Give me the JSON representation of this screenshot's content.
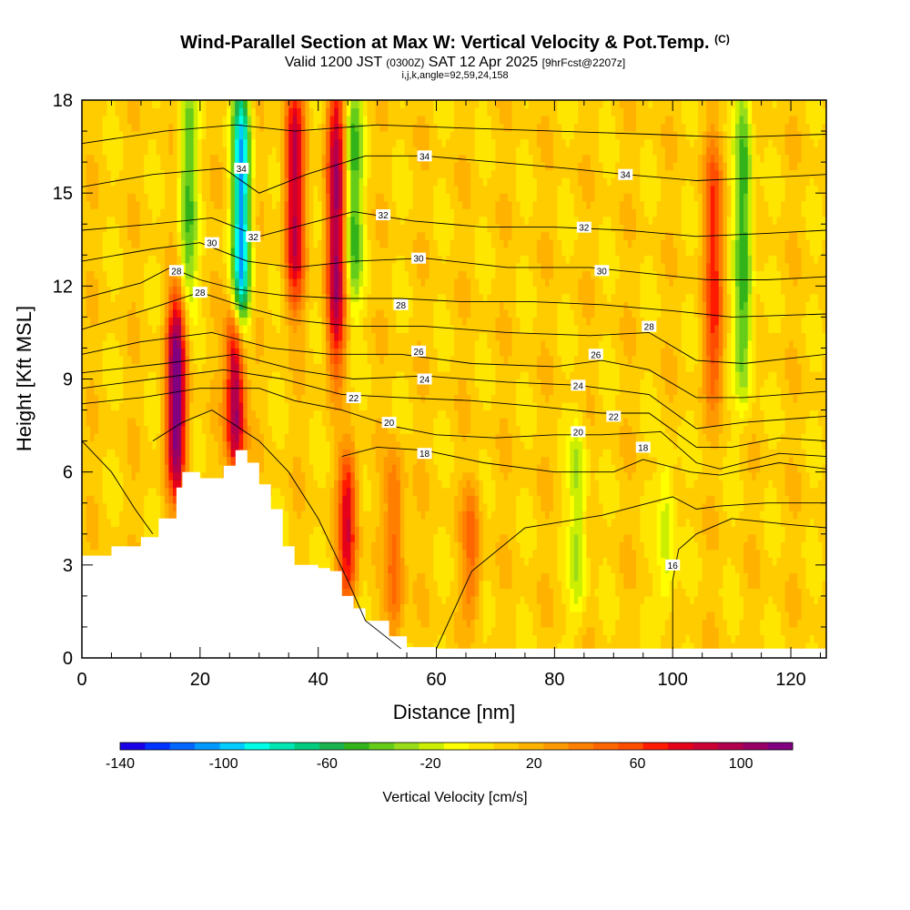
{
  "titles": {
    "main": "Wind-Parallel Section at Max W: Vertical Velocity & Pot.Temp.",
    "copyright": "(C)",
    "valid_prefix": "Valid 1200 JST",
    "valid_utc": "(0300Z)",
    "valid_date": "SAT 12 Apr 2025",
    "forecast": "[9hrFcst@2207z]",
    "indices": "i,j,k,angle=92,59,24,158"
  },
  "chart_data": {
    "type": "heatmap",
    "title": "Wind-Parallel Section at Max W: Vertical Velocity & Pot.Temp.",
    "xlabel": "Distance [nm]",
    "ylabel": "Height [Kft MSL]",
    "xlim": [
      0,
      126
    ],
    "ylim": [
      0,
      18
    ],
    "xticks": [
      0,
      20,
      40,
      60,
      80,
      100,
      120
    ],
    "yticks": [
      0,
      3,
      6,
      9,
      12,
      15,
      18
    ],
    "colorbar": {
      "label": "Vertical Velocity [cm/s]",
      "range": [
        -140,
        120
      ],
      "ticks": [
        -140,
        -100,
        -60,
        -20,
        20,
        60,
        100
      ],
      "colors": [
        "#1a00e6",
        "#0033ff",
        "#0066ff",
        "#0099ff",
        "#00ccff",
        "#00ffe6",
        "#00e6b3",
        "#00cc80",
        "#1ab34d",
        "#33b31a",
        "#66cc1a",
        "#99dd1a",
        "#ccee00",
        "#ffff00",
        "#ffe600",
        "#ffcc00",
        "#ffb300",
        "#ff9900",
        "#ff8000",
        "#ff6600",
        "#ff4d00",
        "#ff1a00",
        "#e6001a",
        "#cc0033",
        "#b3004d",
        "#990066",
        "#800080"
      ]
    },
    "terrain_kft": [
      [
        0,
        3.3
      ],
      [
        5,
        3.6
      ],
      [
        10,
        3.9
      ],
      [
        13,
        4.5
      ],
      [
        16,
        5.5
      ],
      [
        17,
        6.0
      ],
      [
        20,
        5.8
      ],
      [
        24,
        6.2
      ],
      [
        26,
        6.7
      ],
      [
        28,
        6.3
      ],
      [
        30,
        5.6
      ],
      [
        32,
        4.8
      ],
      [
        34,
        3.6
      ],
      [
        36,
        3.0
      ],
      [
        40,
        2.9
      ],
      [
        42,
        2.8
      ],
      [
        44,
        2.0
      ],
      [
        46,
        1.6
      ],
      [
        48,
        1.2
      ],
      [
        52,
        0.7
      ],
      [
        55,
        0.35
      ],
      [
        60,
        0.3
      ],
      [
        126,
        0.3
      ]
    ],
    "updrafts": [
      {
        "x": 16,
        "y_min": 6.0,
        "y_max": 11.0,
        "peak_cm_s": 110
      },
      {
        "x": 26,
        "y_min": 6.7,
        "y_max": 10.5,
        "peak_cm_s": 100
      },
      {
        "x": 36,
        "y_min": 12.0,
        "y_max": 18.0,
        "peak_cm_s": 80
      },
      {
        "x": 43,
        "y_min": 10.0,
        "y_max": 18.0,
        "peak_cm_s": 90
      },
      {
        "x": 45,
        "y_min": 2.5,
        "y_max": 6.0,
        "peak_cm_s": 70
      },
      {
        "x": 53,
        "y_min": 1.0,
        "y_max": 6.0,
        "peak_cm_s": 40
      },
      {
        "x": 66,
        "y_min": 2.0,
        "y_max": 5.0,
        "peak_cm_s": 35
      },
      {
        "x": 107,
        "y_min": 9.0,
        "y_max": 16.0,
        "peak_cm_s": 55
      }
    ],
    "downdrafts": [
      {
        "x": 27,
        "y_min": 11.0,
        "y_max": 18.0,
        "peak_cm_s": -110
      },
      {
        "x": 18,
        "y_min": 12.0,
        "y_max": 18.0,
        "peak_cm_s": -50
      },
      {
        "x": 46,
        "y_min": 12.0,
        "y_max": 18.0,
        "peak_cm_s": -55
      },
      {
        "x": 112,
        "y_min": 9.0,
        "y_max": 18.0,
        "peak_cm_s": -60
      },
      {
        "x": 84,
        "y_min": 2.0,
        "y_max": 7.0,
        "peak_cm_s": -35
      },
      {
        "x": 99,
        "y_min": 2.0,
        "y_max": 6.0,
        "peak_cm_s": -30
      }
    ],
    "isentropes": [
      {
        "label": "16",
        "points": [
          [
            0,
            7.0
          ],
          [
            5,
            6.0
          ],
          [
            9,
            4.8
          ],
          [
            12,
            4.0
          ]
        ],
        "labels_at": []
      },
      {
        "label": "16",
        "points": [
          [
            60,
            0.3
          ],
          [
            66,
            2.8
          ],
          [
            75,
            4.2
          ],
          [
            88,
            4.6
          ],
          [
            96,
            5.0
          ],
          [
            100,
            5.2
          ],
          [
            104,
            4.8
          ],
          [
            108,
            4.9
          ],
          [
            116,
            5.0
          ],
          [
            126,
            5.0
          ]
        ],
        "labels_at": []
      },
      {
        "label": "16",
        "points": [
          [
            100,
            0.3
          ],
          [
            100,
            2.5
          ],
          [
            101,
            3.5
          ],
          [
            104,
            4.0
          ],
          [
            110,
            4.5
          ],
          [
            120,
            4.3
          ],
          [
            126,
            4.2
          ]
        ],
        "labels_at": [
          [
            100,
            3.0
          ]
        ]
      },
      {
        "label": "18",
        "points": [
          [
            12,
            7.0
          ],
          [
            17,
            7.6
          ],
          [
            22,
            8.0
          ],
          [
            30,
            7.0
          ],
          [
            35,
            6.0
          ],
          [
            40,
            4.5
          ],
          [
            45,
            2.5
          ],
          [
            48,
            1.2
          ],
          [
            54,
            0.3
          ]
        ],
        "labels_at": []
      },
      {
        "label": "18",
        "points": [
          [
            44,
            6.5
          ],
          [
            50,
            6.8
          ],
          [
            58,
            6.7
          ],
          [
            68,
            6.3
          ],
          [
            80,
            6.0
          ],
          [
            90,
            6.0
          ],
          [
            95,
            6.4
          ],
          [
            103,
            6.0
          ],
          [
            108,
            5.9
          ],
          [
            118,
            6.3
          ],
          [
            126,
            6.1
          ]
        ],
        "labels_at": [
          [
            58,
            6.6
          ],
          [
            95,
            6.8
          ]
        ]
      },
      {
        "label": "20",
        "points": [
          [
            0,
            8.2
          ],
          [
            10,
            8.4
          ],
          [
            20,
            8.7
          ],
          [
            30,
            8.7
          ],
          [
            36,
            8.3
          ],
          [
            44,
            8.0
          ],
          [
            52,
            7.5
          ],
          [
            60,
            7.2
          ],
          [
            70,
            7.1
          ],
          [
            80,
            7.2
          ],
          [
            88,
            7.2
          ],
          [
            98,
            7.3
          ],
          [
            104,
            6.3
          ],
          [
            108,
            6.1
          ],
          [
            118,
            6.6
          ],
          [
            126,
            6.5
          ]
        ],
        "labels_at": [
          [
            52,
            7.6
          ],
          [
            84,
            7.3
          ]
        ]
      },
      {
        "label": "22",
        "points": [
          [
            0,
            8.7
          ],
          [
            12,
            9.0
          ],
          [
            24,
            9.3
          ],
          [
            34,
            9.0
          ],
          [
            44,
            8.5
          ],
          [
            54,
            8.4
          ],
          [
            66,
            8.3
          ],
          [
            78,
            8.1
          ],
          [
            88,
            7.9
          ],
          [
            96,
            7.9
          ],
          [
            104,
            6.8
          ],
          [
            110,
            6.8
          ],
          [
            118,
            7.1
          ],
          [
            126,
            7.0
          ]
        ],
        "labels_at": [
          [
            46,
            8.4
          ],
          [
            90,
            7.8
          ]
        ]
      },
      {
        "label": "24",
        "points": [
          [
            0,
            9.2
          ],
          [
            14,
            9.5
          ],
          [
            26,
            9.8
          ],
          [
            36,
            9.3
          ],
          [
            46,
            9.0
          ],
          [
            58,
            9.1
          ],
          [
            72,
            8.9
          ],
          [
            84,
            8.8
          ],
          [
            96,
            8.5
          ],
          [
            104,
            7.4
          ],
          [
            112,
            7.6
          ],
          [
            126,
            7.8
          ]
        ],
        "labels_at": [
          [
            58,
            9.0
          ],
          [
            84,
            8.8
          ]
        ]
      },
      {
        "label": "26",
        "points": [
          [
            0,
            9.8
          ],
          [
            10,
            10.2
          ],
          [
            22,
            10.5
          ],
          [
            32,
            10.0
          ],
          [
            42,
            9.8
          ],
          [
            54,
            9.8
          ],
          [
            66,
            9.5
          ],
          [
            80,
            9.4
          ],
          [
            88,
            9.6
          ],
          [
            96,
            9.3
          ],
          [
            104,
            8.4
          ],
          [
            112,
            8.4
          ],
          [
            126,
            8.6
          ]
        ],
        "labels_at": [
          [
            57,
            9.9
          ],
          [
            87,
            9.8
          ]
        ]
      },
      {
        "label": "28",
        "points": [
          [
            0,
            10.6
          ],
          [
            12,
            11.3
          ],
          [
            20,
            11.8
          ],
          [
            28,
            11.3
          ],
          [
            36,
            10.9
          ],
          [
            46,
            10.7
          ],
          [
            58,
            10.7
          ],
          [
            72,
            10.5
          ],
          [
            86,
            10.4
          ],
          [
            96,
            10.5
          ],
          [
            104,
            9.6
          ],
          [
            112,
            9.5
          ],
          [
            126,
            9.8
          ]
        ],
        "labels_at": [
          [
            20,
            11.8
          ],
          [
            54,
            11.4
          ],
          [
            96,
            10.7
          ]
        ]
      },
      {
        "label": "28",
        "points": [
          [
            0,
            11.6
          ],
          [
            10,
            12.1
          ],
          [
            15,
            12.6
          ],
          [
            20,
            12.2
          ],
          [
            26,
            11.9
          ],
          [
            34,
            11.7
          ],
          [
            44,
            11.6
          ],
          [
            54,
            11.6
          ],
          [
            64,
            11.5
          ],
          [
            76,
            11.5
          ],
          [
            88,
            11.4
          ],
          [
            100,
            11.2
          ],
          [
            110,
            11.0
          ],
          [
            126,
            11.1
          ]
        ],
        "labels_at": [
          [
            16,
            12.5
          ]
        ]
      },
      {
        "label": "30",
        "points": [
          [
            0,
            12.8
          ],
          [
            12,
            13.2
          ],
          [
            20,
            13.4
          ],
          [
            28,
            12.8
          ],
          [
            36,
            12.6
          ],
          [
            46,
            12.8
          ],
          [
            58,
            12.9
          ],
          [
            72,
            12.6
          ],
          [
            86,
            12.6
          ],
          [
            96,
            12.4
          ],
          [
            106,
            12.2
          ],
          [
            116,
            12.2
          ],
          [
            126,
            12.3
          ]
        ],
        "labels_at": [
          [
            22,
            13.4
          ],
          [
            57,
            12.9
          ],
          [
            88,
            12.5
          ]
        ]
      },
      {
        "label": "32",
        "points": [
          [
            0,
            13.8
          ],
          [
            12,
            14.0
          ],
          [
            22,
            14.2
          ],
          [
            30,
            13.6
          ],
          [
            38,
            14.0
          ],
          [
            46,
            14.4
          ],
          [
            56,
            14.1
          ],
          [
            68,
            13.9
          ],
          [
            80,
            13.9
          ],
          [
            92,
            13.8
          ],
          [
            104,
            13.6
          ],
          [
            116,
            13.7
          ],
          [
            126,
            13.8
          ]
        ],
        "labels_at": [
          [
            29,
            13.6
          ],
          [
            51,
            14.3
          ],
          [
            85,
            13.9
          ]
        ]
      },
      {
        "label": "34",
        "points": [
          [
            0,
            15.2
          ],
          [
            12,
            15.6
          ],
          [
            24,
            15.8
          ],
          [
            30,
            15.0
          ],
          [
            38,
            15.6
          ],
          [
            48,
            16.2
          ],
          [
            58,
            16.2
          ],
          [
            70,
            16.0
          ],
          [
            82,
            15.8
          ],
          [
            92,
            15.6
          ],
          [
            104,
            15.4
          ],
          [
            116,
            15.5
          ],
          [
            126,
            15.6
          ]
        ],
        "labels_at": [
          [
            27,
            15.8
          ],
          [
            58,
            16.2
          ],
          [
            92,
            15.6
          ]
        ]
      },
      {
        "label": "",
        "points": [
          [
            0,
            16.6
          ],
          [
            14,
            17.0
          ],
          [
            26,
            17.2
          ],
          [
            36,
            17.0
          ],
          [
            50,
            17.2
          ],
          [
            64,
            17.1
          ],
          [
            80,
            17.0
          ],
          [
            96,
            16.9
          ],
          [
            110,
            16.8
          ],
          [
            126,
            16.9
          ]
        ],
        "labels_at": []
      }
    ]
  }
}
